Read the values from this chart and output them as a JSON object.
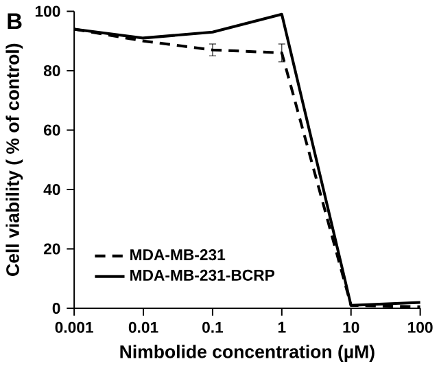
{
  "chart_data": {
    "type": "line",
    "title": "B",
    "xlabel": "Nimbolide concentration (µM)",
    "ylabel": "Cell viability ( % of control)",
    "x": [
      0.001,
      0.01,
      0.1,
      1,
      10,
      100
    ],
    "log": "x",
    "xlim": [
      0.001,
      100
    ],
    "xticks": [
      0.001,
      0.01,
      0.1,
      1,
      10,
      100
    ],
    "ylim": [
      0,
      100
    ],
    "yticks": [
      0,
      20,
      40,
      60,
      80,
      100
    ],
    "series": [
      {
        "name": "MDA-MB-231",
        "color": "#000000",
        "line_style": "dashed",
        "values": [
          94,
          90,
          87,
          86,
          1,
          0.5
        ],
        "errors": [
          null,
          null,
          2,
          3,
          null,
          null
        ]
      },
      {
        "name": "MDA-MB-231-BCRP",
        "color": "#000000",
        "line_style": "solid",
        "values": [
          94,
          91,
          93,
          99,
          1,
          2
        ]
      }
    ],
    "legend": "bottom left",
    "grid": false,
    "marker": "none"
  }
}
